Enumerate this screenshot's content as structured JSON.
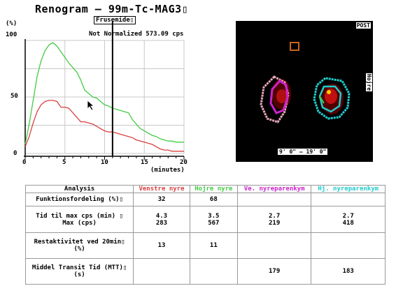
{
  "title": "Renogram – 99m-Tc-MAG3▯",
  "marker_label": "Frusemide▯",
  "normalization_text": "Not Normalized 573.09 cps",
  "colors": {
    "left_kidney": "#d94040",
    "right_kidney": "#44cc44",
    "left_parenchyma": "#cc22cc",
    "right_parenchyma": "#22cccc"
  },
  "chart_data": {
    "type": "line",
    "ylabel": "(%)",
    "xlabel": "(minutes)",
    "xlim": [
      0,
      20
    ],
    "ylim": [
      0,
      100
    ],
    "x_ticks": [
      "0",
      "5",
      "10",
      "15",
      "20"
    ],
    "y_ticks": [
      "0",
      "50",
      "100"
    ],
    "grid": true,
    "marker_x": 11,
    "series": [
      {
        "name": "",
        "color": "#44cc44",
        "x": [
          0,
          0.5,
          1,
          1.5,
          2,
          2.5,
          3,
          3.5,
          4,
          4.5,
          5,
          5.5,
          6,
          6.5,
          7,
          7.5,
          8,
          8.5,
          9,
          9.5,
          10,
          10.5,
          11,
          11.5,
          12,
          12.5,
          13,
          13.5,
          14,
          14.5,
          15,
          15.5,
          16,
          16.5,
          17,
          17.5,
          18,
          18.5,
          19,
          19.5,
          20
        ],
        "y": [
          8,
          26,
          47,
          68,
          82,
          91,
          96,
          98,
          95,
          90,
          85,
          80,
          76,
          72,
          65,
          56,
          53,
          50,
          49,
          46,
          43,
          42,
          40,
          39,
          38,
          37,
          36,
          30,
          26,
          22,
          20,
          18,
          16,
          15,
          13,
          12,
          11,
          11,
          10,
          10,
          10
        ]
      },
      {
        "name": "",
        "color": "#d94040",
        "x": [
          0,
          0.5,
          1,
          1.5,
          2,
          2.5,
          3,
          3.5,
          4,
          4.5,
          5,
          5.5,
          6,
          6.5,
          7,
          7.5,
          8,
          8.5,
          9,
          9.5,
          10,
          10.5,
          11,
          11.5,
          12,
          12.5,
          13,
          13.5,
          14,
          14.5,
          15,
          15.5,
          16,
          16.5,
          17,
          17.5,
          18,
          18.5,
          19,
          19.5,
          20
        ],
        "y": [
          6,
          15,
          27,
          37,
          43,
          46,
          47,
          47,
          46,
          41,
          41,
          40,
          36,
          32,
          28,
          28,
          27,
          26,
          24,
          22,
          20,
          19,
          19,
          18,
          17,
          16,
          15,
          14,
          12,
          11,
          10,
          9,
          8,
          6,
          4,
          3,
          3,
          2,
          2,
          2,
          2
        ]
      }
    ]
  },
  "scan": {
    "view_label": "POST",
    "side_label": "Hojre",
    "time_label": "9' 0\" – 19' 0\""
  },
  "table": {
    "headers": [
      "Analysis",
      "Venstre nyre",
      "Hojre nyre",
      "Ve. nyreparenkym",
      "Hj. nyreparenkym"
    ],
    "rows": [
      {
        "label": "Funktionsfordeling (%)▯",
        "cells": [
          "32",
          "68",
          "",
          ""
        ]
      },
      {
        "label": "Tid til max cps (min) ▯\nMax (cps)",
        "cells": [
          "4.3\n283",
          "3.5\n567",
          "2.7\n219",
          "2.7\n418"
        ]
      },
      {
        "label": "Restaktivitet ved 20min▯\n(%)",
        "cells": [
          "13",
          "11",
          "",
          ""
        ]
      },
      {
        "label": "Middel Transit Tid (MTT)▯\n(s)",
        "cells": [
          "",
          "",
          "179",
          "183"
        ]
      }
    ]
  }
}
